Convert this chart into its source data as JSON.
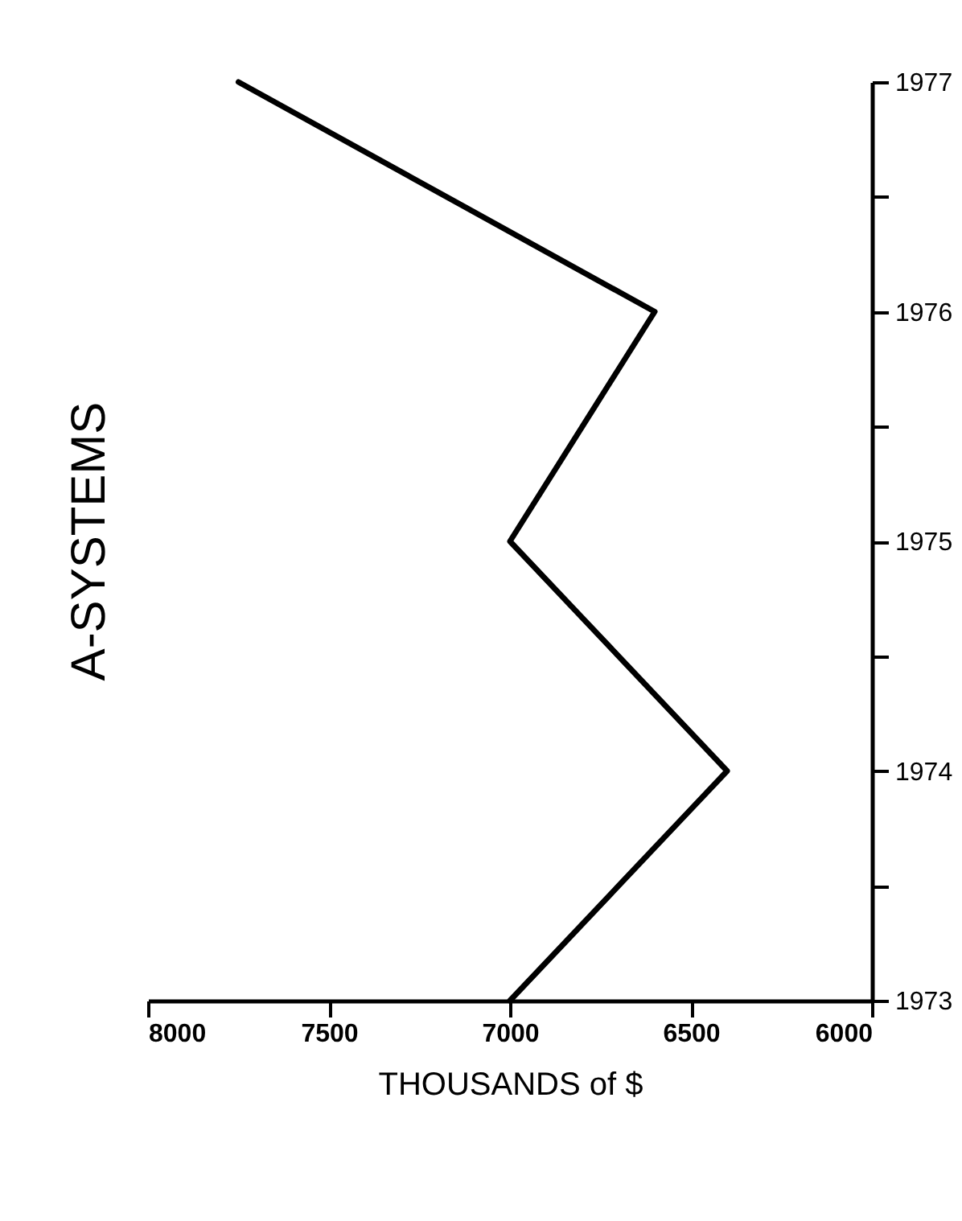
{
  "chart_data": {
    "type": "line",
    "title": "A-SYSTEMS",
    "xlabel": "THOUSANDS of $",
    "x": [
      7000,
      6400,
      7000,
      6600,
      7750
    ],
    "series": [
      {
        "color": "#000000",
        "values": [
          1973,
          1974,
          1975,
          1976,
          1977
        ]
      }
    ],
    "xlim": [
      8000,
      6000
    ],
    "xticks": [
      8000,
      7500,
      7000,
      6500,
      6000
    ],
    "ylim": [
      1973,
      1977
    ],
    "yticks": [
      1973,
      {
        "value": 1973.5,
        "label": null
      },
      1974,
      {
        "value": 1974.5,
        "label": null
      },
      1975,
      {
        "value": 1975.5,
        "label": null
      },
      1976,
      {
        "value": 1976.5,
        "label": null
      },
      1977
    ],
    "grid": false,
    "legend": false,
    "marker": "none",
    "line_style": "solid"
  }
}
